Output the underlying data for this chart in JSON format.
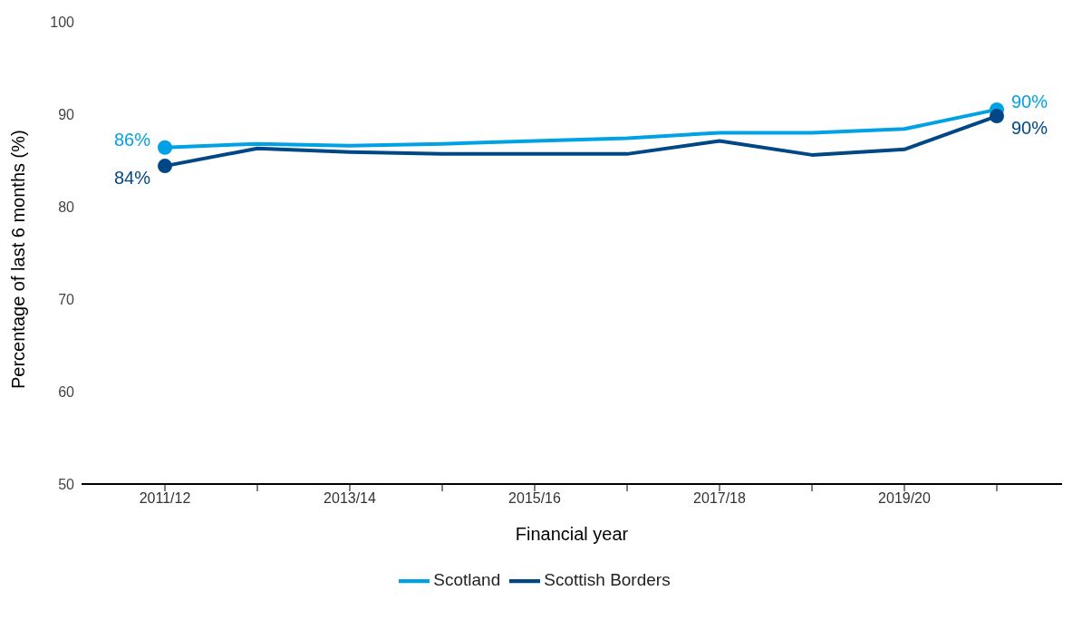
{
  "chart_data": {
    "type": "line",
    "xlabel": "Financial year",
    "ylabel": "Percentage of last 6 months (%)",
    "categories": [
      "2011/12",
      null,
      "2013/14",
      null,
      "2015/16",
      null,
      "2017/18",
      null,
      "2019/20",
      null
    ],
    "series": [
      {
        "name": "Scotland",
        "color": "#00a2e5",
        "values": [
          86.4,
          86.8,
          86.6,
          86.8,
          87.1,
          87.4,
          88.0,
          88.0,
          88.4,
          90.5
        ],
        "value_labels": [
          "86%",
          null,
          null,
          null,
          null,
          null,
          null,
          null,
          null,
          "90%"
        ]
      },
      {
        "name": "Scottish Borders",
        "color": "#004785",
        "values": [
          84.4,
          86.3,
          85.9,
          85.7,
          85.7,
          85.7,
          87.1,
          85.6,
          86.2,
          89.8
        ],
        "value_labels": [
          "84%",
          null,
          null,
          null,
          null,
          null,
          null,
          null,
          null,
          "90%"
        ]
      }
    ],
    "ylim": [
      50,
      100
    ],
    "yticks": [
      50,
      60,
      70,
      80,
      90,
      100
    ],
    "grid": false,
    "legend": "bottom",
    "line_style": "solid"
  }
}
